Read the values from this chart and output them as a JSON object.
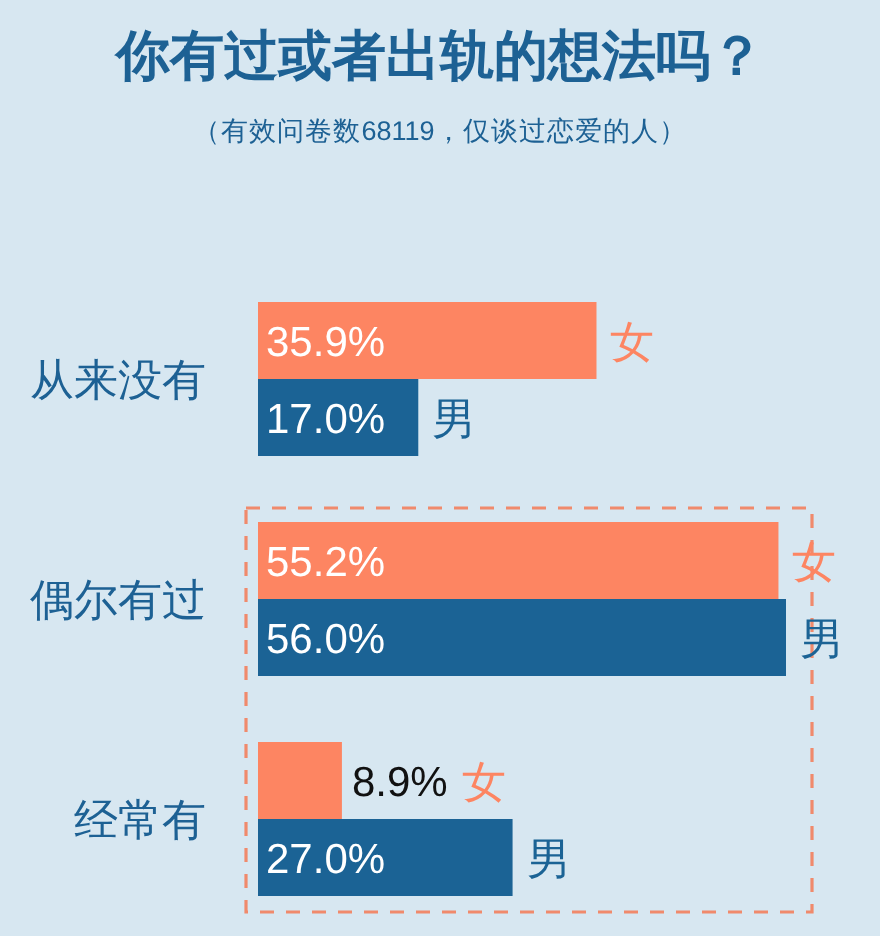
{
  "chart_data": {
    "type": "bar",
    "orientation": "horizontal",
    "title": "你有过或者出轨的想法吗？",
    "subtitle": "（有效问卷数68119，仅谈过恋爱的人）",
    "categories": [
      "从来没有",
      "偶尔有过",
      "经常有"
    ],
    "series": [
      {
        "name": "女",
        "color": "#fd8562",
        "values": [
          35.9,
          55.2,
          8.9
        ],
        "value_labels": [
          "35.9%",
          "55.2%",
          "8.9%"
        ]
      },
      {
        "name": "男",
        "color": "#1b6395",
        "values": [
          17.0,
          56.0,
          27.0
        ],
        "value_labels": [
          "17.0%",
          "56.0%",
          "27.0%"
        ]
      }
    ]
  }
}
